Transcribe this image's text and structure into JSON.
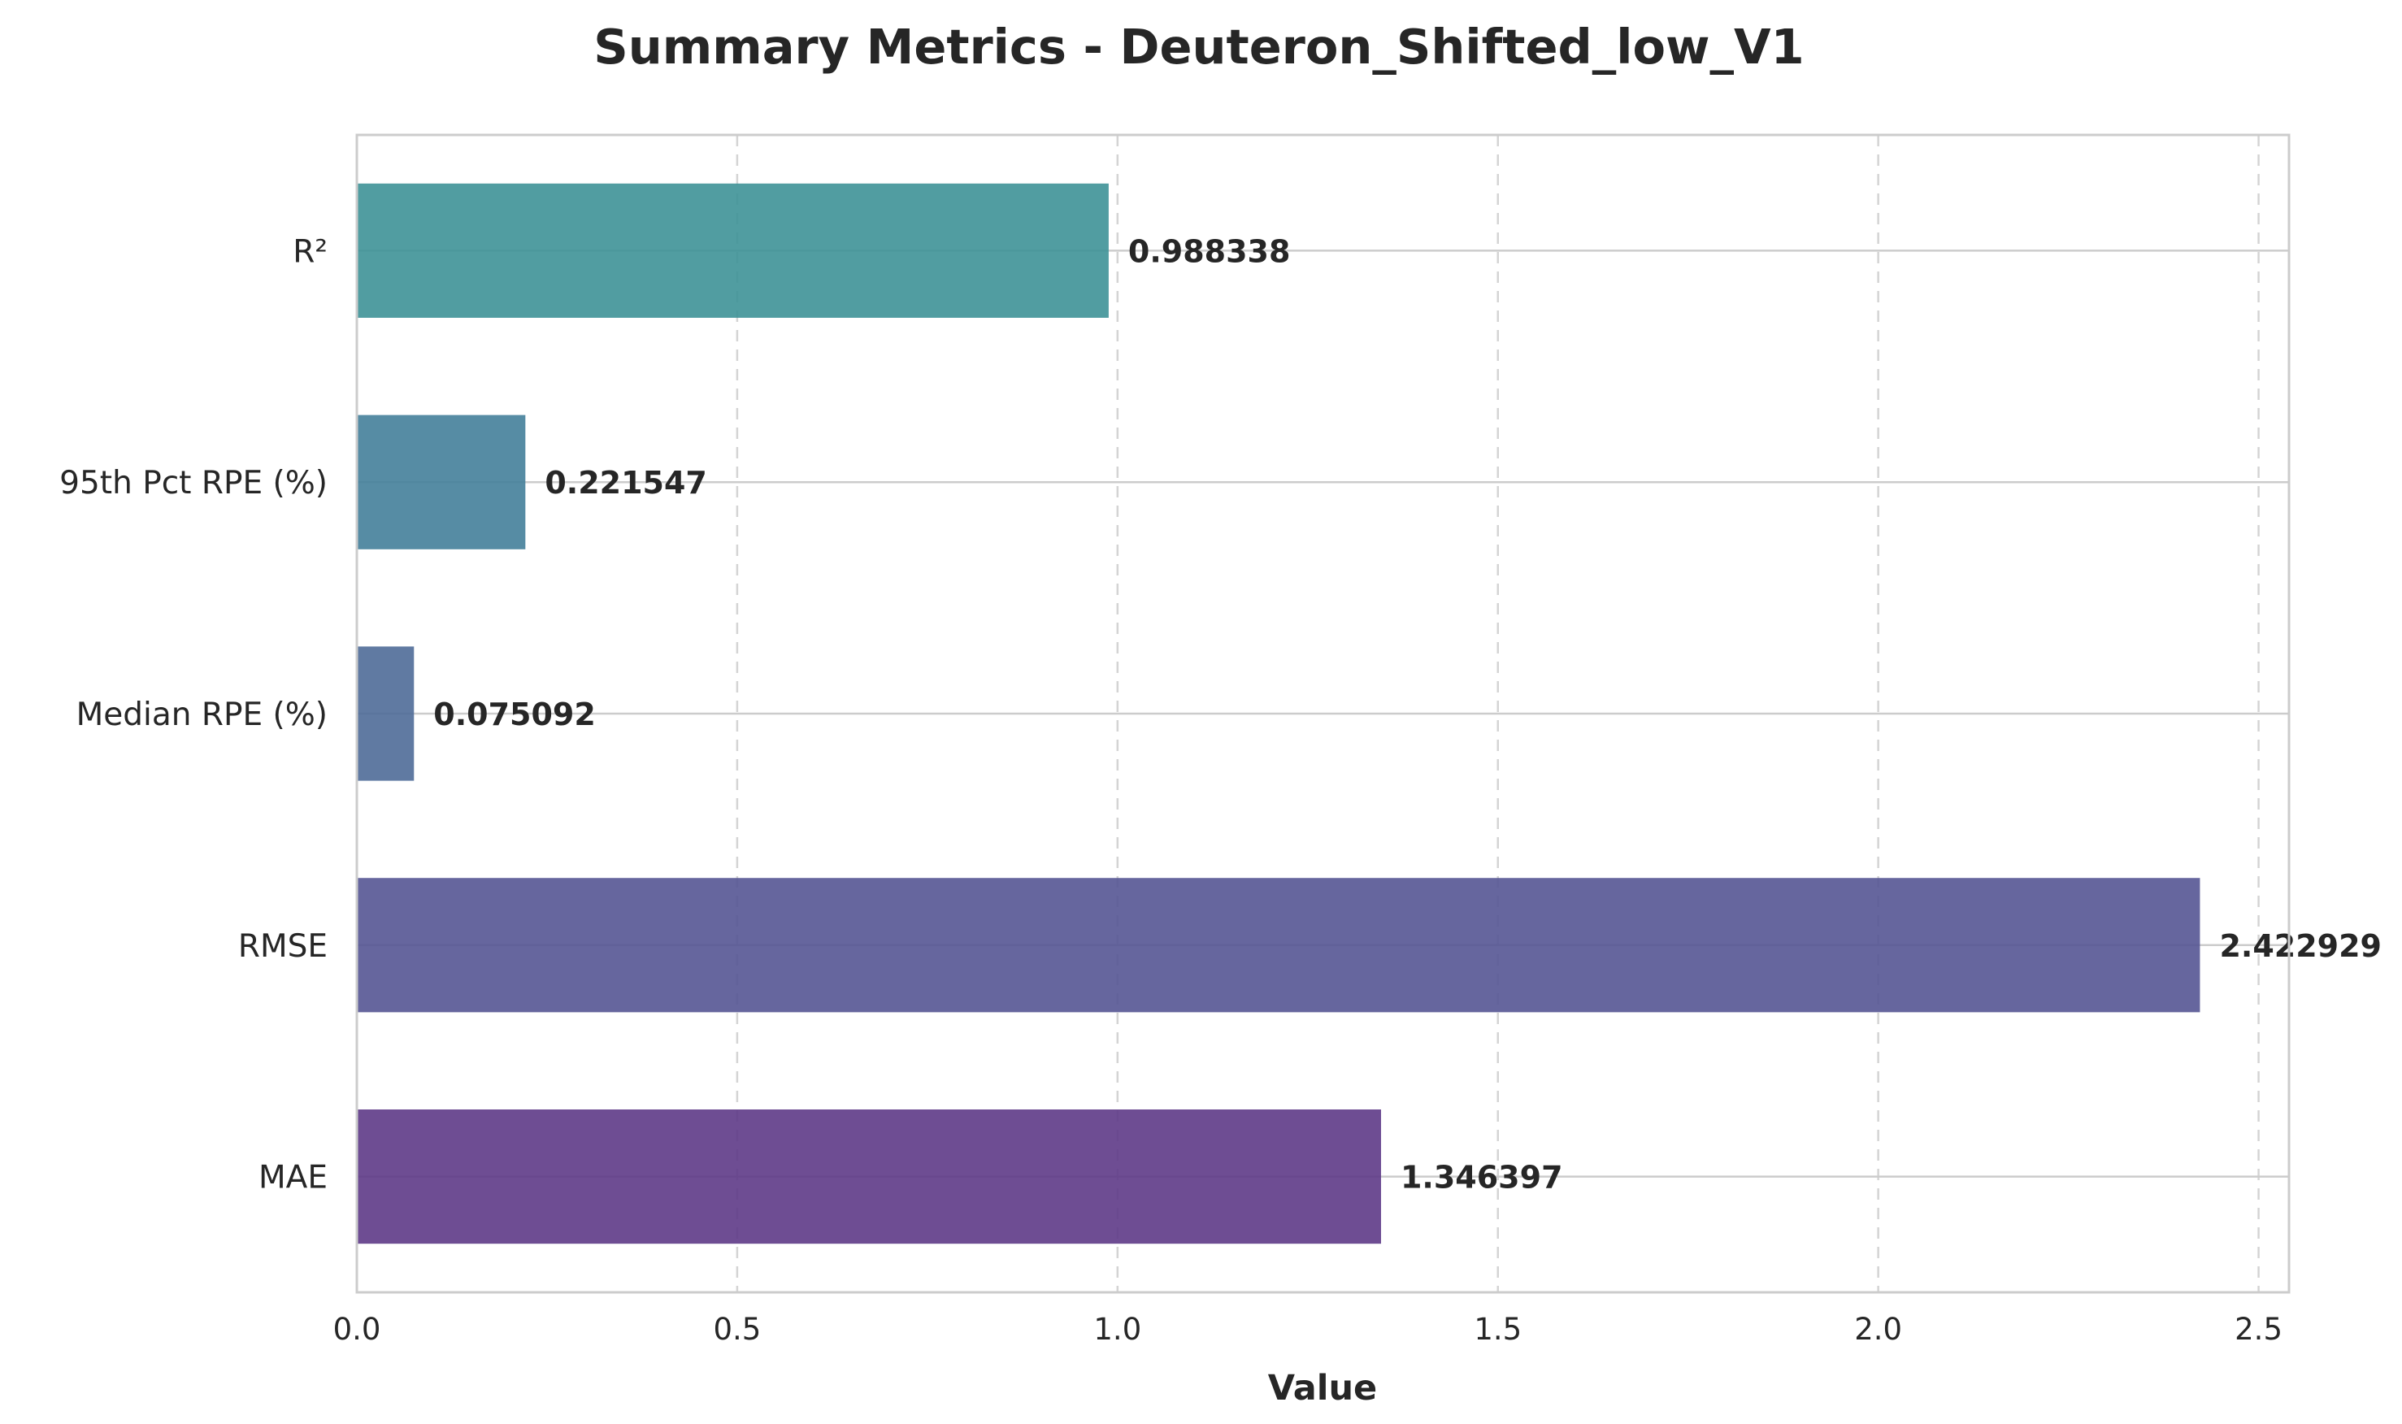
{
  "chart_data": {
    "type": "bar",
    "orientation": "horizontal",
    "title": "Summary Metrics - Deuteron_Shifted_low_V1",
    "xlabel": "Value",
    "ylabel": "",
    "xlim": [
      0,
      2.54
    ],
    "xticks": [
      0.0,
      0.5,
      1.0,
      1.5,
      2.0,
      2.5
    ],
    "xtick_labels": [
      "0.0",
      "0.5",
      "1.0",
      "1.5",
      "2.0",
      "2.5"
    ],
    "grid": true,
    "categories": [
      "R²",
      "95th Pct RPE (%)",
      "Median RPE (%)",
      "RMSE",
      "MAE"
    ],
    "values": [
      0.988338,
      0.221547,
      0.075092,
      2.422929,
      1.346397
    ],
    "value_labels": [
      "0.988338",
      "0.221547",
      "0.075092",
      "2.422929",
      "1.346397"
    ],
    "colors": [
      "#3e9297",
      "#44809a",
      "#4f6b98",
      "#555593",
      "#5e3a87"
    ]
  }
}
